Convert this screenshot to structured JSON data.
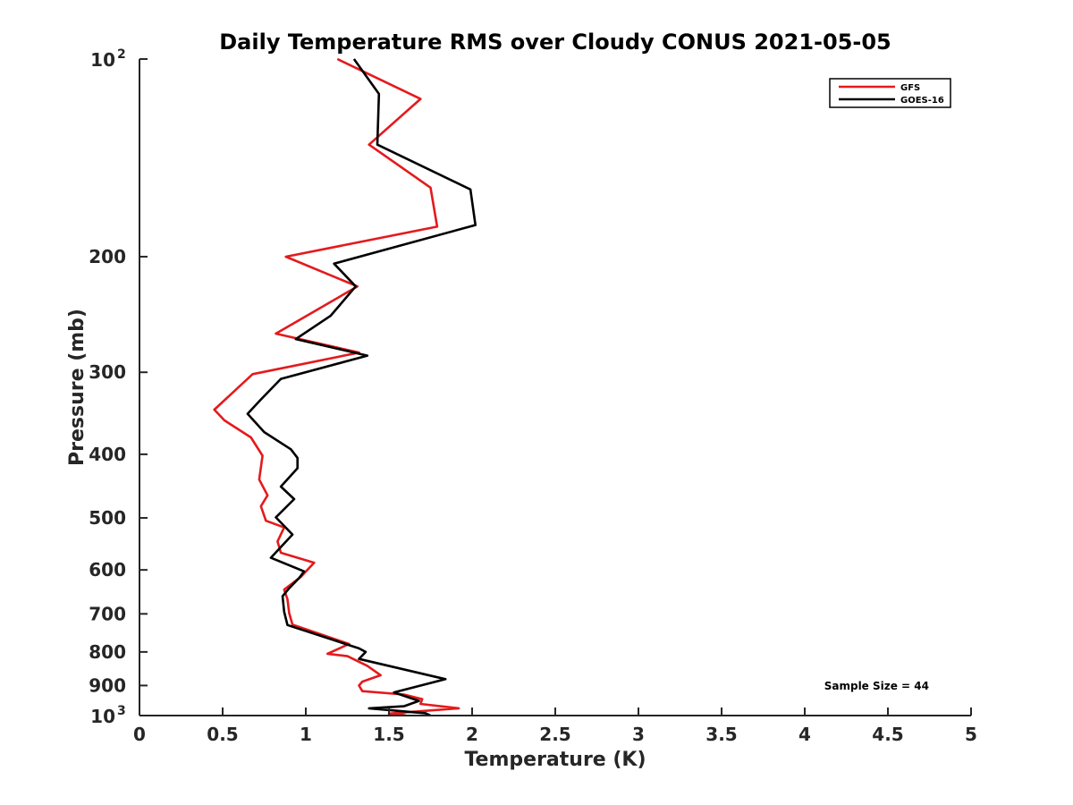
{
  "chart_data": {
    "type": "line",
    "title": "Daily Temperature RMS over Cloudy CONUS 2021-05-05",
    "xlabel": "Temperature (K)",
    "ylabel": "Pressure (mb)",
    "xlim": [
      0,
      5
    ],
    "ylim": [
      100,
      1000
    ],
    "y_scale": "log",
    "y_reversed": true,
    "grid": false,
    "legend_position": "top-right",
    "x_ticks": [
      {
        "value": 0,
        "label": "0"
      },
      {
        "value": 0.5,
        "label": "0.5"
      },
      {
        "value": 1,
        "label": "1"
      },
      {
        "value": 1.5,
        "label": "1.5"
      },
      {
        "value": 2,
        "label": "2"
      },
      {
        "value": 2.5,
        "label": "2.5"
      },
      {
        "value": 3,
        "label": "3"
      },
      {
        "value": 3.5,
        "label": "3.5"
      },
      {
        "value": 4,
        "label": "4"
      },
      {
        "value": 4.5,
        "label": "4.5"
      },
      {
        "value": 5,
        "label": "5"
      }
    ],
    "y_ticks": [
      {
        "value": 100,
        "label": "10",
        "sup": "2"
      },
      {
        "value": 200,
        "label": "200"
      },
      {
        "value": 300,
        "label": "300"
      },
      {
        "value": 400,
        "label": "400"
      },
      {
        "value": 500,
        "label": "500"
      },
      {
        "value": 600,
        "label": "600"
      },
      {
        "value": 700,
        "label": "700"
      },
      {
        "value": 800,
        "label": "800"
      },
      {
        "value": 900,
        "label": "900"
      },
      {
        "value": 1000,
        "label": "10",
        "sup": "3"
      }
    ],
    "annotation": "Sample Size = 44",
    "series": [
      {
        "name": "GFS",
        "color": "#e41a1c",
        "points": [
          [
            1.19,
            100
          ],
          [
            1.69,
            115
          ],
          [
            1.38,
            135
          ],
          [
            1.75,
            157
          ],
          [
            1.79,
            180
          ],
          [
            0.88,
            200
          ],
          [
            1.31,
            222
          ],
          [
            0.82,
            262
          ],
          [
            1.32,
            280
          ],
          [
            0.68,
            302
          ],
          [
            0.45,
            342
          ],
          [
            0.51,
            355
          ],
          [
            0.67,
            377
          ],
          [
            0.74,
            402
          ],
          [
            0.72,
            437
          ],
          [
            0.77,
            462
          ],
          [
            0.73,
            480
          ],
          [
            0.76,
            505
          ],
          [
            0.87,
            517
          ],
          [
            0.83,
            543
          ],
          [
            0.85,
            565
          ],
          [
            1.05,
            585
          ],
          [
            0.97,
            615
          ],
          [
            0.87,
            643
          ],
          [
            0.89,
            665
          ],
          [
            0.9,
            698
          ],
          [
            0.92,
            727
          ],
          [
            1.26,
            778
          ],
          [
            1.13,
            805
          ],
          [
            1.25,
            812
          ],
          [
            1.37,
            840
          ],
          [
            1.45,
            868
          ],
          [
            1.34,
            888
          ],
          [
            1.32,
            900
          ],
          [
            1.34,
            918
          ],
          [
            1.59,
            929
          ],
          [
            1.7,
            944
          ],
          [
            1.69,
            960
          ],
          [
            1.92,
            975
          ],
          [
            1.5,
            993
          ],
          [
            1.6,
            999
          ]
        ]
      },
      {
        "name": "GOES-16",
        "color": "#000000",
        "points": [
          [
            1.29,
            100
          ],
          [
            1.44,
            113
          ],
          [
            1.43,
            135
          ],
          [
            1.99,
            158
          ],
          [
            2.02,
            179
          ],
          [
            1.17,
            205
          ],
          [
            1.3,
            222
          ],
          [
            1.15,
            246
          ],
          [
            0.94,
            267
          ],
          [
            1.37,
            283
          ],
          [
            0.85,
            307
          ],
          [
            0.73,
            330
          ],
          [
            0.65,
            347
          ],
          [
            0.75,
            370
          ],
          [
            0.91,
            393
          ],
          [
            0.95,
            405
          ],
          [
            0.95,
            420
          ],
          [
            0.85,
            448
          ],
          [
            0.93,
            468
          ],
          [
            0.82,
            499
          ],
          [
            0.92,
            530
          ],
          [
            0.79,
            575
          ],
          [
            0.99,
            603
          ],
          [
            0.96,
            617
          ],
          [
            0.9,
            640
          ],
          [
            0.86,
            658
          ],
          [
            0.87,
            695
          ],
          [
            0.89,
            728
          ],
          [
            1.32,
            790
          ],
          [
            1.36,
            800
          ],
          [
            1.32,
            820
          ],
          [
            1.84,
            880
          ],
          [
            1.53,
            922
          ],
          [
            1.68,
            950
          ],
          [
            1.59,
            968
          ],
          [
            1.38,
            975
          ],
          [
            1.72,
            992
          ],
          [
            1.75,
            1000
          ]
        ]
      }
    ]
  }
}
